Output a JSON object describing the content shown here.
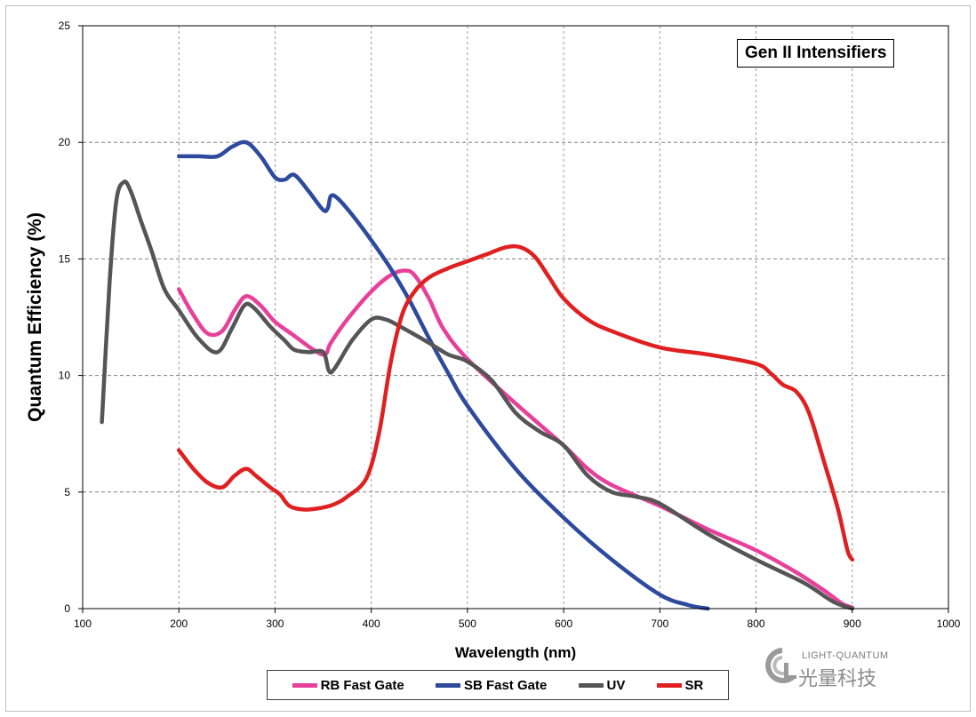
{
  "chart_data": {
    "type": "line",
    "title": "Gen II Intensifiers",
    "xlabel": "Wavelength (nm)",
    "ylabel": "Quantum Efficiency (%)",
    "xlim": [
      100,
      1000
    ],
    "ylim": [
      0,
      25
    ],
    "x_ticks": [
      100,
      200,
      300,
      400,
      500,
      600,
      700,
      800,
      900,
      1000
    ],
    "y_ticks": [
      0,
      5,
      10,
      15,
      20,
      25
    ],
    "grid": true,
    "legend_position": "bottom",
    "series": [
      {
        "name": "RB Fast Gate",
        "color": "#e8409a",
        "points": [
          [
            200,
            13.7
          ],
          [
            215,
            12.6
          ],
          [
            230,
            11.8
          ],
          [
            245,
            11.9
          ],
          [
            258,
            12.8
          ],
          [
            270,
            13.4
          ],
          [
            285,
            13.0
          ],
          [
            300,
            12.3
          ],
          [
            320,
            11.7
          ],
          [
            340,
            11.1
          ],
          [
            352,
            10.9
          ],
          [
            358,
            11.4
          ],
          [
            375,
            12.4
          ],
          [
            400,
            13.6
          ],
          [
            420,
            14.3
          ],
          [
            435,
            14.5
          ],
          [
            445,
            14.3
          ],
          [
            460,
            13.3
          ],
          [
            475,
            12.0
          ],
          [
            500,
            10.7
          ],
          [
            550,
            8.8
          ],
          [
            600,
            7.0
          ],
          [
            625,
            6.0
          ],
          [
            650,
            5.3
          ],
          [
            700,
            4.4
          ],
          [
            750,
            3.4
          ],
          [
            800,
            2.5
          ],
          [
            840,
            1.6
          ],
          [
            870,
            0.8
          ],
          [
            890,
            0.2
          ],
          [
            900,
            0.05
          ]
        ]
      },
      {
        "name": "SB Fast Gate",
        "color": "#2e4a9e",
        "points": [
          [
            200,
            19.4
          ],
          [
            220,
            19.4
          ],
          [
            240,
            19.4
          ],
          [
            255,
            19.8
          ],
          [
            270,
            20.0
          ],
          [
            285,
            19.4
          ],
          [
            300,
            18.5
          ],
          [
            310,
            18.4
          ],
          [
            320,
            18.6
          ],
          [
            335,
            17.9
          ],
          [
            350,
            17.1
          ],
          [
            355,
            17.2
          ],
          [
            358,
            17.7
          ],
          [
            365,
            17.6
          ],
          [
            380,
            16.9
          ],
          [
            400,
            15.8
          ],
          [
            420,
            14.6
          ],
          [
            440,
            13.2
          ],
          [
            460,
            11.6
          ],
          [
            480,
            10.1
          ],
          [
            500,
            8.7
          ],
          [
            550,
            6.0
          ],
          [
            600,
            3.9
          ],
          [
            650,
            2.1
          ],
          [
            700,
            0.6
          ],
          [
            730,
            0.15
          ],
          [
            750,
            0.0
          ]
        ]
      },
      {
        "name": "UV",
        "color": "#555555",
        "points": [
          [
            120,
            8.0
          ],
          [
            128,
            14.0
          ],
          [
            135,
            17.5
          ],
          [
            143,
            18.3
          ],
          [
            150,
            17.9
          ],
          [
            160,
            16.7
          ],
          [
            172,
            15.3
          ],
          [
            185,
            13.7
          ],
          [
            200,
            12.8
          ],
          [
            220,
            11.6
          ],
          [
            240,
            11.0
          ],
          [
            255,
            12.0
          ],
          [
            268,
            13.0
          ],
          [
            278,
            12.9
          ],
          [
            295,
            12.1
          ],
          [
            310,
            11.5
          ],
          [
            320,
            11.1
          ],
          [
            335,
            11.0
          ],
          [
            350,
            11.0
          ],
          [
            356,
            10.2
          ],
          [
            362,
            10.3
          ],
          [
            380,
            11.5
          ],
          [
            400,
            12.4
          ],
          [
            415,
            12.4
          ],
          [
            430,
            12.1
          ],
          [
            460,
            11.4
          ],
          [
            480,
            10.9
          ],
          [
            500,
            10.6
          ],
          [
            525,
            9.8
          ],
          [
            550,
            8.4
          ],
          [
            575,
            7.6
          ],
          [
            600,
            7.0
          ],
          [
            625,
            5.7
          ],
          [
            650,
            5.0
          ],
          [
            675,
            4.8
          ],
          [
            700,
            4.5
          ],
          [
            750,
            3.2
          ],
          [
            800,
            2.1
          ],
          [
            850,
            1.1
          ],
          [
            880,
            0.3
          ],
          [
            900,
            0.0
          ]
        ]
      },
      {
        "name": "SR",
        "color": "#e02020",
        "points": [
          [
            200,
            6.8
          ],
          [
            215,
            6.0
          ],
          [
            230,
            5.4
          ],
          [
            245,
            5.2
          ],
          [
            258,
            5.7
          ],
          [
            270,
            6.0
          ],
          [
            280,
            5.7
          ],
          [
            295,
            5.2
          ],
          [
            305,
            4.9
          ],
          [
            315,
            4.4
          ],
          [
            330,
            4.25
          ],
          [
            345,
            4.3
          ],
          [
            360,
            4.45
          ],
          [
            375,
            4.8
          ],
          [
            395,
            5.6
          ],
          [
            408,
            7.5
          ],
          [
            420,
            10.5
          ],
          [
            432,
            12.6
          ],
          [
            445,
            13.6
          ],
          [
            460,
            14.2
          ],
          [
            480,
            14.6
          ],
          [
            500,
            14.9
          ],
          [
            520,
            15.2
          ],
          [
            540,
            15.5
          ],
          [
            555,
            15.5
          ],
          [
            570,
            15.1
          ],
          [
            585,
            14.2
          ],
          [
            600,
            13.3
          ],
          [
            625,
            12.4
          ],
          [
            650,
            11.9
          ],
          [
            700,
            11.2
          ],
          [
            750,
            10.9
          ],
          [
            800,
            10.5
          ],
          [
            815,
            10.1
          ],
          [
            828,
            9.6
          ],
          [
            842,
            9.3
          ],
          [
            855,
            8.4
          ],
          [
            870,
            6.4
          ],
          [
            885,
            4.3
          ],
          [
            895,
            2.5
          ],
          [
            900,
            2.1
          ]
        ]
      }
    ]
  },
  "logo": {
    "text_top": "LIGHT-QUANTUM",
    "text_bottom": "光量科技"
  }
}
